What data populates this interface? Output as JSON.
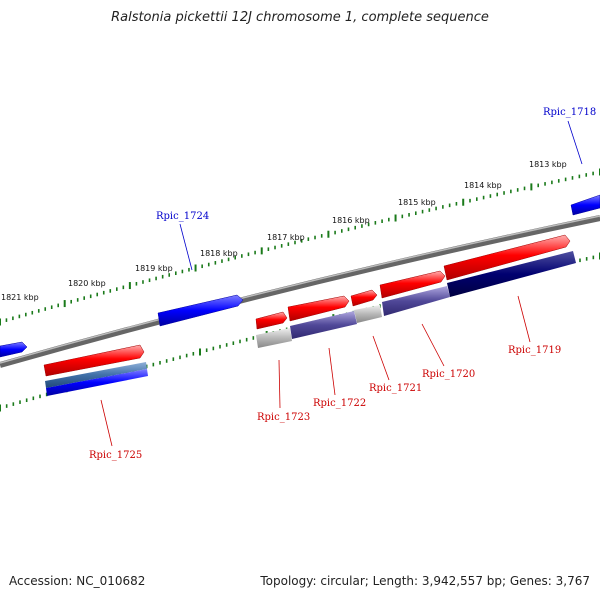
{
  "title": "Ralstonia pickettii 12J chromosome 1, complete sequence",
  "footer": {
    "accession": "Accession: NC_010682",
    "summary": "Topology: circular; Length: 3,942,557 bp; Genes: 3,767"
  },
  "colors": {
    "forward_gene": "#ff0000",
    "reverse_gene": "#0000ff",
    "backbone": "#777777",
    "tick": "#1a7a1a",
    "label_red": "#cc0000",
    "label_blue": "#0000cc"
  },
  "ticks": {
    "outer": [
      "1813 kbp",
      "1814 kbp",
      "1815 kbp",
      "1816 kbp",
      "1817 kbp",
      "1818 kbp",
      "1819 kbp",
      "1820 kbp",
      "1821 kbp"
    ]
  },
  "genes": [
    {
      "name": "Rpic_1718",
      "strand": "reverse"
    },
    {
      "name": "Rpic_1719",
      "strand": "forward"
    },
    {
      "name": "Rpic_1720",
      "strand": "forward"
    },
    {
      "name": "Rpic_1721",
      "strand": "forward"
    },
    {
      "name": "Rpic_1722",
      "strand": "forward"
    },
    {
      "name": "Rpic_1723",
      "strand": "forward"
    },
    {
      "name": "Rpic_1724",
      "strand": "reverse"
    },
    {
      "name": "Rpic_1725",
      "strand": "forward"
    }
  ]
}
